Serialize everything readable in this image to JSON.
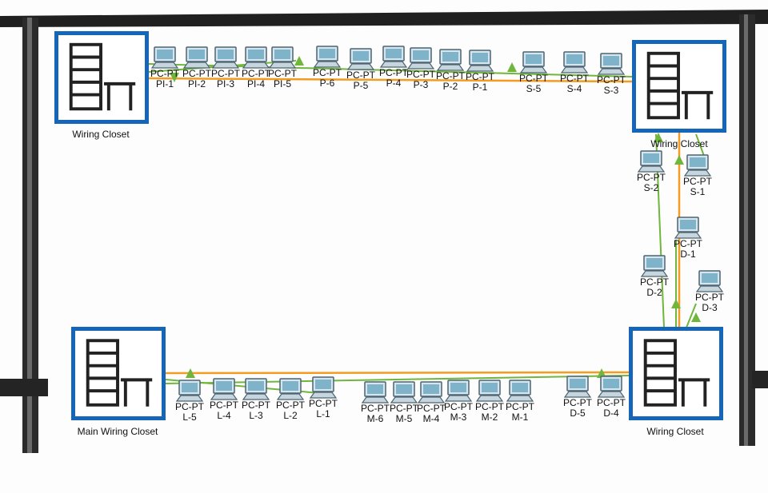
{
  "closets": [
    {
      "id": "wc-top-left",
      "label": "Wiring Closet"
    },
    {
      "id": "wc-top-right",
      "label": "Wiring Closet"
    },
    {
      "id": "wc-bottom-left",
      "label": "Main Wiring Closet"
    },
    {
      "id": "wc-bottom-right",
      "label": "Wiring Closet"
    }
  ],
  "pcs": [
    {
      "type": "PC-PT",
      "name": "PI-1"
    },
    {
      "type": "PC-PT",
      "name": "PI-2"
    },
    {
      "type": "PC-PT",
      "name": "PI-3"
    },
    {
      "type": "PC-PT",
      "name": "PI-4"
    },
    {
      "type": "PC-PT",
      "name": "PI-5"
    },
    {
      "type": "PC-PT",
      "name": "P-6"
    },
    {
      "type": "PC-PT",
      "name": "P-5"
    },
    {
      "type": "PC-PT",
      "name": "P-4"
    },
    {
      "type": "PC-PT",
      "name": "P-3"
    },
    {
      "type": "PC-PT",
      "name": "P-2"
    },
    {
      "type": "PC-PT",
      "name": "P-1"
    },
    {
      "type": "PC-PT",
      "name": "S-5"
    },
    {
      "type": "PC-PT",
      "name": "S-4"
    },
    {
      "type": "PC-PT",
      "name": "S-3"
    },
    {
      "type": "PC-PT",
      "name": "S-2"
    },
    {
      "type": "PC-PT",
      "name": "S-1"
    },
    {
      "type": "PC-PT",
      "name": "D-1"
    },
    {
      "type": "PC-PT",
      "name": "D-2"
    },
    {
      "type": "PC-PT",
      "name": "D-3"
    },
    {
      "type": "PC-PT",
      "name": "L-5"
    },
    {
      "type": "PC-PT",
      "name": "L-4"
    },
    {
      "type": "PC-PT",
      "name": "L-3"
    },
    {
      "type": "PC-PT",
      "name": "L-2"
    },
    {
      "type": "PC-PT",
      "name": "L-1"
    },
    {
      "type": "PC-PT",
      "name": "M-6"
    },
    {
      "type": "PC-PT",
      "name": "M-5"
    },
    {
      "type": "PC-PT",
      "name": "M-4"
    },
    {
      "type": "PC-PT",
      "name": "M-3"
    },
    {
      "type": "PC-PT",
      "name": "M-2"
    },
    {
      "type": "PC-PT",
      "name": "M-1"
    },
    {
      "type": "PC-PT",
      "name": "D-5"
    },
    {
      "type": "PC-PT",
      "name": "D-4"
    }
  ],
  "colors": {
    "closet_border": "#1565b8",
    "backbone_cable": "#f39c1f",
    "pc_cable": "#6fb63b",
    "wall": "#202020"
  },
  "icons": {
    "closet": "rack-desk-icon",
    "pc": "pc-workstation-icon",
    "arrow": "link-arrow-icon"
  }
}
